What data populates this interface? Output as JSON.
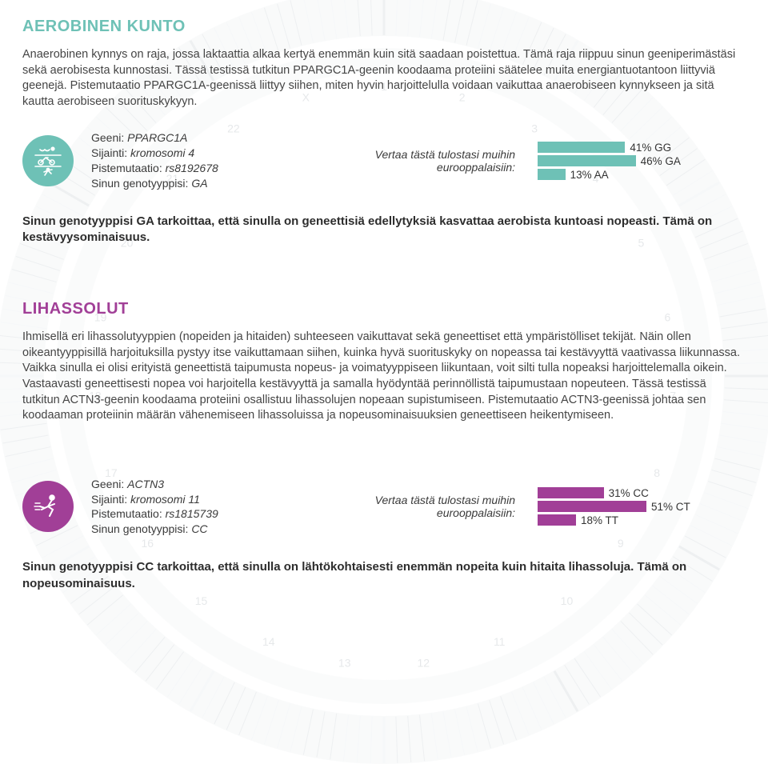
{
  "colors": {
    "accent1": "#6ec1b6",
    "accent2": "#a13f97",
    "text": "#3a3a3a",
    "bg": "#ffffff",
    "ring_track": "#e6e9eb",
    "ring_tick": "#c2c7cb"
  },
  "background_ring": {
    "outer_radius": 470,
    "inner_radius": 370,
    "tick_opacity": 0.35
  },
  "section_aerobic": {
    "title": "AEROBINEN KUNTO",
    "title_color": "#6ec1b6",
    "intro": "Anaerobinen kynnys on raja, jossa laktaattia alkaa kertyä enemmän kuin sitä saadaan poistettua. Tämä raja riippuu sinun geeniperimästäsi sekä aerobisesta kunnostasi. Tässä testissä tutkitun PPARGC1A-geenin koodaama proteiini säätelee muita energiantuotantoon liittyviä geenejä. Pistemutaatio PPARGC1A-geenissä liittyy siihen, miten hyvin harjoittelulla voidaan vaikuttaa anaerobiseen kynnykseen ja sitä kautta aerobiseen suorituskykyyn.",
    "gene": {
      "gene_label": "Geeni:",
      "gene_value": "PPARGC1A",
      "location_label": "Sijainti:",
      "location_value": "kromosomi 4",
      "mutation_label": "Pistemutaatio:",
      "mutation_value": "rs8192678",
      "genotype_label": "Sinun genotyyppisi:",
      "genotype_value": "GA"
    },
    "compare_label_line1": "Vertaa tästä tulostasi muihin",
    "compare_label_line2": "eurooppalaisiin:",
    "bars": [
      {
        "pct": 41,
        "label": "41% GG",
        "width_pct": 41
      },
      {
        "pct": 46,
        "label": "46% GA",
        "width_pct": 46
      },
      {
        "pct": 13,
        "label": "13% AA",
        "width_pct": 13
      }
    ],
    "bar_color": "#6ec1b6",
    "result": "Sinun genotyyppisi GA tarkoittaa, että sinulla on geneettisiä edellytyksiä kasvattaa aerobista kuntoasi nopeasti. Tämä on kestävyysominaisuus."
  },
  "section_muscle": {
    "title": "LIHASSOLUT",
    "title_color": "#a13f97",
    "intro": "Ihmisellä eri lihassolutyyppien (nopeiden ja hitaiden) suhteeseen vaikuttavat sekä geneettiset että ympäristölliset tekijät. Näin ollen oikeantyyppisillä harjoituksilla pystyy itse vaikuttamaan siihen, kuinka hyvä suorituskyky on nopeassa tai kestävyyttä vaativassa liikunnassa. Vaikka sinulla ei olisi erityistä geneettistä taipumusta nopeus- ja voimatyyppiseen liikuntaan, voit silti tulla nopeaksi harjoittelemalla oikein. Vastaavasti geneettisesti nopea voi harjoitella kestävyyttä ja samalla hyödyntää perinnöllistä taipumustaan nopeuteen. Tässä testissä tutkitun ACTN3-geenin koodaama proteiini osallistuu lihassolujen nopeaan supistumiseen. Pistemutaatio ACTN3-geenissä johtaa sen koodaaman proteiinin määrän vähenemiseen lihassoluissa ja nopeusominaisuuksien geneettiseen heikentymiseen.",
    "gene": {
      "gene_label": "Geeni:",
      "gene_value": "ACTN3",
      "location_label": "Sijainti:",
      "location_value": "kromosomi 11",
      "mutation_label": "Pistemutaatio:",
      "mutation_value": "rs1815739",
      "genotype_label": "Sinun genotyyppisi:",
      "genotype_value": "CC"
    },
    "compare_label_line1": "Vertaa tästä tulostasi muihin",
    "compare_label_line2": "eurooppalaisiin:",
    "bars": [
      {
        "pct": 31,
        "label": "31% CC",
        "width_pct": 31
      },
      {
        "pct": 51,
        "label": "51% CT",
        "width_pct": 51
      },
      {
        "pct": 18,
        "label": "18% TT",
        "width_pct": 18
      }
    ],
    "bar_color": "#a13f97",
    "result": "Sinun genotyyppisi CC tarkoittaa, että sinulla on lähtökohtaisesti enemmän nopeita kuin hitaita lihassoluja. Tämä on nopeusominaisuus."
  }
}
